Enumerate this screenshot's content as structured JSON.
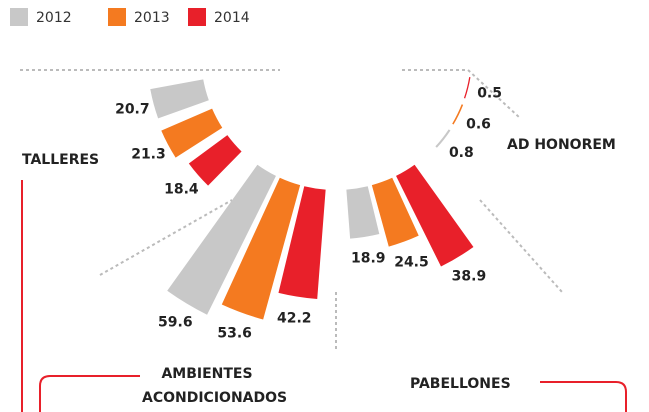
{
  "chart_data": {
    "type": "radial_bar",
    "categories": [
      "TALLERES",
      "AMBIENTES ACONDICIONADOS",
      "PABELLONES",
      "AD HONOREM"
    ],
    "series": [
      {
        "name": "2012",
        "color": "#c8c8c8",
        "values": [
          20.7,
          59.6,
          18.9,
          0.8
        ]
      },
      {
        "name": "2013",
        "color": "#f47a20",
        "values": [
          21.3,
          53.6,
          24.5,
          0.6
        ]
      },
      {
        "name": "2014",
        "color": "#e8202a",
        "values": [
          18.4,
          42.2,
          38.9,
          0.5
        ]
      }
    ]
  }
}
